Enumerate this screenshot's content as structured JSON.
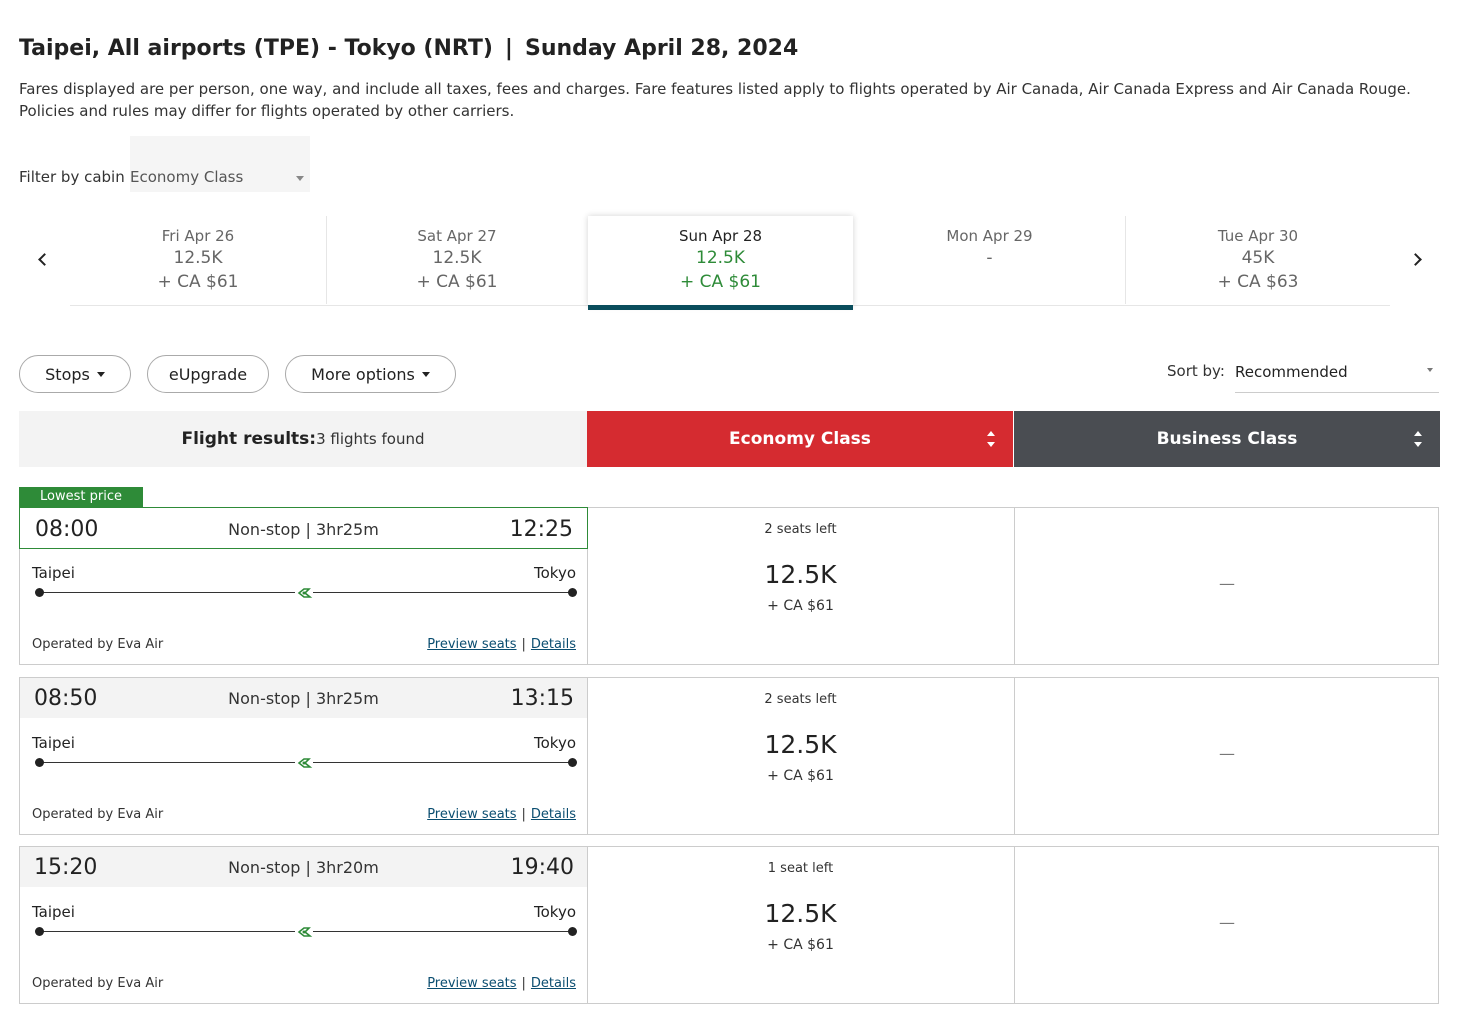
{
  "header": {
    "top_text": "",
    "route": "Taipei, All airports (TPE) - Tokyo (NRT)",
    "separator": "|",
    "date": "Sunday April 28, 2024",
    "disclaimer": "Fares displayed are per person, one way, and include all taxes, fees and charges. Fare features listed apply to flights operated by Air Canada, Air Canada Express and Air Canada Rouge. Policies and rules may differ for flights operated by other carriers."
  },
  "cabin_filter": {
    "label": "Filter by cabin",
    "value": "Economy Class"
  },
  "dates": [
    {
      "day": "Fri Apr 26",
      "points": "12.5K",
      "taxes": "+ CA $61"
    },
    {
      "day": "Sat Apr 27",
      "points": "12.5K",
      "taxes": "+ CA $61"
    },
    {
      "day": "Sun Apr 28",
      "points": "12.5K",
      "taxes": "+ CA $61"
    },
    {
      "day": "Mon Apr 29",
      "points": "-",
      "taxes": ""
    },
    {
      "day": "Tue Apr 30",
      "points": "45K",
      "taxes": "+ CA $63"
    }
  ],
  "filters": {
    "stops": "Stops",
    "eupgrade": "eUpgrade",
    "more": "More options"
  },
  "sort": {
    "label": "Sort by:",
    "value": "Recommended"
  },
  "results": {
    "label": "Flight results:",
    "count": "3 flights found",
    "economy": "Economy Class",
    "business": "Business Class",
    "lowest_tag": "Lowest price"
  },
  "common": {
    "preview_seats": "Preview seats",
    "details": "Details",
    "link_sep": "|",
    "business_none": "—",
    "accent": "#d52b30",
    "green": "#2e8b38",
    "dark": "#4a4d52"
  },
  "flights": [
    {
      "dep": "08:00",
      "arr": "12:25",
      "duration": "Non-stop | 3hr25m",
      "origin": "Taipei",
      "dest": "Tokyo",
      "operator": "Operated by Eva Air",
      "seats": "2 seats left",
      "price": "12.5K",
      "tax": "+ CA $61"
    },
    {
      "dep": "08:50",
      "arr": "13:15",
      "duration": "Non-stop | 3hr25m",
      "origin": "Taipei",
      "dest": "Tokyo",
      "operator": "Operated by Eva Air",
      "seats": "2 seats left",
      "price": "12.5K",
      "tax": "+ CA $61"
    },
    {
      "dep": "15:20",
      "arr": "19:40",
      "duration": "Non-stop | 3hr20m",
      "origin": "Taipei",
      "dest": "Tokyo",
      "operator": "Operated by Eva Air",
      "seats": "1 seat left",
      "price": "12.5K",
      "tax": "+ CA $61"
    }
  ]
}
